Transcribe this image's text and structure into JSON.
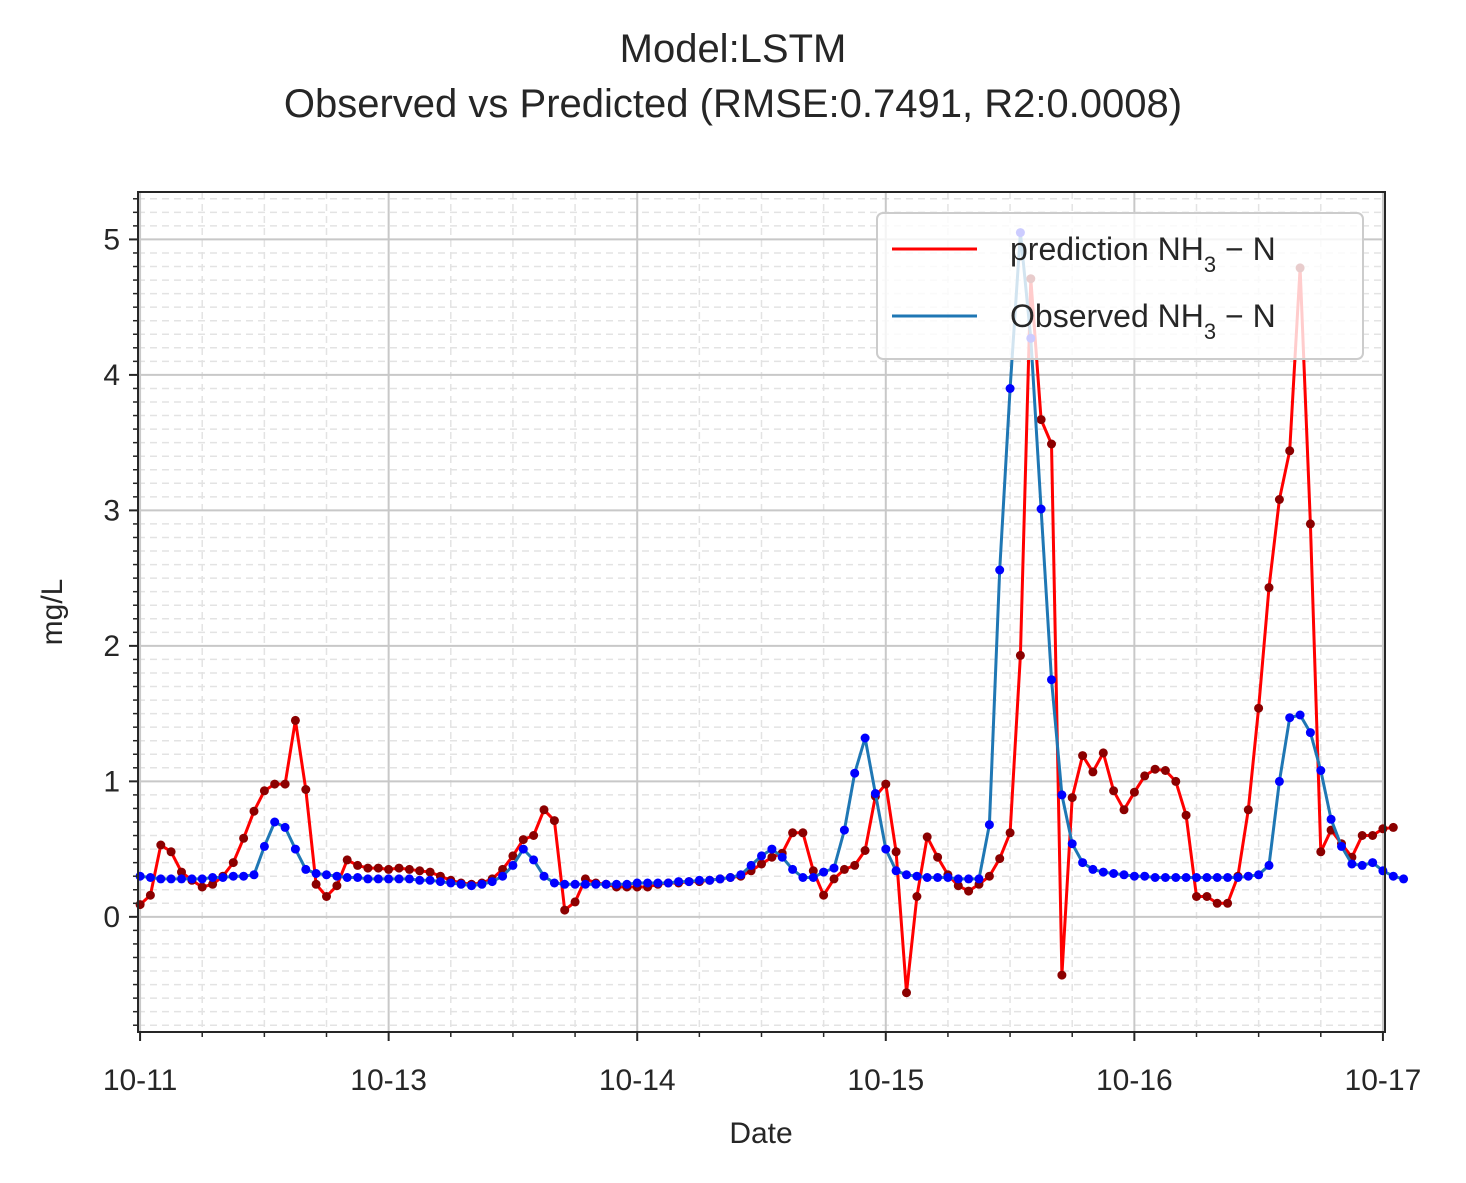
{
  "chart_data": {
    "type": "line",
    "title": "Model:LSTM",
    "subtitle": "Observed vs Predicted (RMSE:0.7491, R2:0.0008)",
    "xlabel": "Date",
    "ylabel": "mg/L",
    "x_start": "10-11",
    "x_step_hours": 1,
    "x_ticks": [
      {
        "value": 0,
        "label": "10-11"
      },
      {
        "value": 24,
        "label": "10-13"
      },
      {
        "value": 48,
        "label": "10-14"
      },
      {
        "value": 72,
        "label": "10-15"
      },
      {
        "value": 96,
        "label": "10-16"
      },
      {
        "value": 120,
        "label": "10-17"
      }
    ],
    "y_ticks": [
      0,
      1,
      2,
      3,
      4,
      5
    ],
    "xlim": [
      -0.2,
      120.2
    ],
    "ylim": [
      -0.85,
      5.35
    ],
    "grid": true,
    "legend_position": "top-right",
    "series": [
      {
        "name": "prediction NH",
        "name_subscript": "3",
        "name_suffix": " − N",
        "color": "#ff0000",
        "marker_color": "#8b0000",
        "values": [
          0.09,
          0.16,
          0.53,
          0.48,
          0.33,
          0.27,
          0.22,
          0.24,
          0.3,
          0.4,
          0.58,
          0.78,
          0.93,
          0.98,
          0.98,
          1.45,
          0.94,
          0.24,
          0.15,
          0.23,
          0.42,
          0.38,
          0.36,
          0.36,
          0.35,
          0.36,
          0.35,
          0.34,
          0.33,
          0.3,
          0.27,
          0.25,
          0.24,
          0.25,
          0.28,
          0.35,
          0.45,
          0.57,
          0.6,
          0.79,
          0.71,
          0.05,
          0.11,
          0.28,
          0.25,
          0.24,
          0.22,
          0.22,
          0.22,
          0.22,
          0.24,
          0.25,
          0.25,
          0.26,
          0.26,
          0.27,
          0.28,
          0.29,
          0.3,
          0.34,
          0.39,
          0.44,
          0.47,
          0.62,
          0.62,
          0.34,
          0.16,
          0.28,
          0.35,
          0.38,
          0.49,
          0.89,
          0.98,
          0.48,
          -0.56,
          0.15,
          0.59,
          0.44,
          0.31,
          0.23,
          0.19,
          0.24,
          0.3,
          0.43,
          0.62,
          1.93,
          4.71,
          3.67,
          3.49,
          -0.43,
          0.88,
          1.19,
          1.07,
          1.21,
          0.93,
          0.79,
          0.92,
          1.04,
          1.09,
          1.08,
          1.0,
          0.75,
          0.15,
          0.15,
          0.1,
          0.1,
          0.3,
          0.79,
          1.54,
          2.43,
          3.08,
          3.44,
          4.79,
          2.9,
          0.48,
          0.64,
          0.54,
          0.44,
          0.6,
          0.6,
          0.65,
          0.66
        ]
      },
      {
        "name": "Observed NH",
        "name_subscript": "3",
        "name_suffix": " − N",
        "color": "#1f77b4",
        "marker_color": "#0000ff",
        "values": [
          0.3,
          0.29,
          0.28,
          0.28,
          0.28,
          0.28,
          0.28,
          0.29,
          0.29,
          0.3,
          0.3,
          0.31,
          0.52,
          0.7,
          0.66,
          0.5,
          0.35,
          0.32,
          0.31,
          0.3,
          0.29,
          0.29,
          0.28,
          0.28,
          0.28,
          0.28,
          0.28,
          0.27,
          0.27,
          0.26,
          0.25,
          0.24,
          0.23,
          0.24,
          0.26,
          0.3,
          0.38,
          0.5,
          0.42,
          0.3,
          0.25,
          0.24,
          0.24,
          0.24,
          0.24,
          0.24,
          0.24,
          0.24,
          0.25,
          0.25,
          0.25,
          0.25,
          0.26,
          0.26,
          0.27,
          0.27,
          0.28,
          0.29,
          0.31,
          0.38,
          0.45,
          0.5,
          0.44,
          0.35,
          0.29,
          0.29,
          0.33,
          0.36,
          0.64,
          1.06,
          1.32,
          0.91,
          0.5,
          0.34,
          0.31,
          0.3,
          0.29,
          0.29,
          0.29,
          0.28,
          0.28,
          0.28,
          0.68,
          2.56,
          3.9,
          5.05,
          4.27,
          3.01,
          1.75,
          0.9,
          0.54,
          0.4,
          0.35,
          0.33,
          0.32,
          0.31,
          0.3,
          0.3,
          0.29,
          0.29,
          0.29,
          0.29,
          0.29,
          0.29,
          0.29,
          0.29,
          0.29,
          0.3,
          0.31,
          0.38,
          1.0,
          1.47,
          1.49,
          1.36,
          1.08,
          0.72,
          0.52,
          0.39,
          0.38,
          0.4,
          0.34,
          0.3,
          0.28
        ]
      }
    ]
  }
}
